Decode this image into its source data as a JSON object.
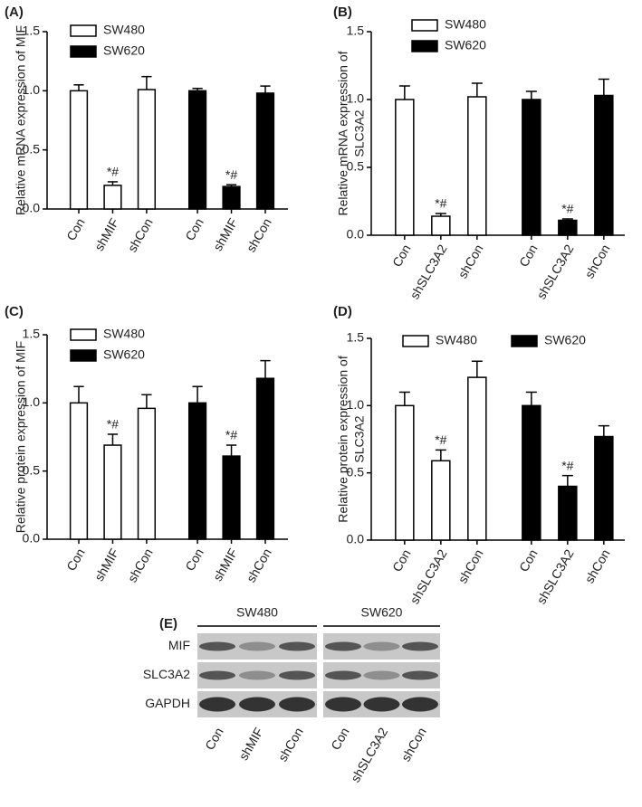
{
  "chart_data": [
    {
      "type": "bar",
      "title": "(A)",
      "ylabel": [
        "Relative mRNA expression of MIF"
      ],
      "legend_layout": "vertical",
      "categories": [
        "Con",
        "shMIF",
        "shCon",
        "Con",
        "shMIF",
        "shCon"
      ],
      "series": [
        {
          "name": "SW480",
          "color": "#ffffff",
          "values": [
            1.0,
            0.2,
            1.01,
            null,
            null,
            null
          ],
          "errors": [
            0.05,
            0.03,
            0.11,
            null,
            null,
            null
          ]
        },
        {
          "name": "SW620",
          "color": "#000000",
          "values": [
            null,
            null,
            null,
            1.0,
            0.19,
            0.98
          ],
          "errors": [
            null,
            null,
            null,
            0.02,
            0.015,
            0.06
          ]
        }
      ],
      "annotations": [
        {
          "text": "*#",
          "at": 1
        },
        {
          "text": "*#",
          "at": 4
        }
      ],
      "ylim": [
        0,
        1.5
      ],
      "yticks": [
        {
          "value": 0,
          "label": "0.0"
        },
        {
          "value": 0.5,
          "label": "0.5"
        },
        {
          "value": 1,
          "label": "1.0"
        },
        {
          "value": 1.5,
          "label": "1.5"
        }
      ]
    },
    {
      "type": "bar",
      "title": "(B)",
      "ylabel": [
        "Relative mRNA expression of",
        "SLC3A2"
      ],
      "legend_layout": "vertical",
      "categories": [
        "Con",
        "shSLC3A2",
        "shCon",
        "Con",
        "shSLC3A2",
        "shCon"
      ],
      "series": [
        {
          "name": "SW480",
          "color": "#ffffff",
          "values": [
            1.0,
            0.14,
            1.02,
            null,
            null,
            null
          ],
          "errors": [
            0.1,
            0.02,
            0.1,
            null,
            null,
            null
          ]
        },
        {
          "name": "SW620",
          "color": "#000000",
          "values": [
            null,
            null,
            null,
            1.0,
            0.11,
            1.03
          ],
          "errors": [
            null,
            null,
            null,
            0.06,
            0.01,
            0.12
          ]
        }
      ],
      "annotations": [
        {
          "text": "*#",
          "at": 1
        },
        {
          "text": "*#",
          "at": 4
        }
      ],
      "ylim": [
        0,
        1.5
      ],
      "yticks": [
        {
          "value": 0,
          "label": "0.0"
        },
        {
          "value": 0.5,
          "label": "0.5"
        },
        {
          "value": 1,
          "label": "1.0"
        },
        {
          "value": 1.5,
          "label": "1.5"
        }
      ]
    },
    {
      "type": "bar",
      "title": "(C)",
      "ylabel": [
        "Relative protein expression of MIF"
      ],
      "legend_layout": "vertical",
      "categories": [
        "Con",
        "shMIF",
        "shCon",
        "Con",
        "shMIF",
        "shCon"
      ],
      "series": [
        {
          "name": "SW480",
          "color": "#ffffff",
          "values": [
            1.0,
            0.69,
            0.96,
            null,
            null,
            null
          ],
          "errors": [
            0.12,
            0.08,
            0.1,
            null,
            null,
            null
          ]
        },
        {
          "name": "SW620",
          "color": "#000000",
          "values": [
            null,
            null,
            null,
            1.0,
            0.61,
            1.18
          ],
          "errors": [
            null,
            null,
            null,
            0.12,
            0.08,
            0.13
          ]
        }
      ],
      "annotations": [
        {
          "text": "*#",
          "at": 1
        },
        {
          "text": "*#",
          "at": 4
        }
      ],
      "ylim": [
        0,
        1.5
      ],
      "yticks": [
        {
          "value": 0,
          "label": "0.0"
        },
        {
          "value": 0.5,
          "label": "0.5"
        },
        {
          "value": 1,
          "label": "1.0"
        },
        {
          "value": 1.5,
          "label": "1.5"
        }
      ]
    },
    {
      "type": "bar",
      "title": "(D)",
      "ylabel": [
        "Relative protein expression of",
        "SLC3A2"
      ],
      "legend_layout": "horizontal",
      "categories": [
        "Con",
        "shSLC3A2",
        "shCon",
        "Con",
        "shSLC3A2",
        "shCon"
      ],
      "series": [
        {
          "name": "SW480",
          "color": "#ffffff",
          "values": [
            1.0,
            0.59,
            1.21,
            null,
            null,
            null
          ],
          "errors": [
            0.1,
            0.08,
            0.12,
            null,
            null,
            null
          ]
        },
        {
          "name": "SW620",
          "color": "#000000",
          "values": [
            null,
            null,
            null,
            1.0,
            0.4,
            0.77
          ],
          "errors": [
            null,
            null,
            null,
            0.1,
            0.08,
            0.08
          ]
        }
      ],
      "annotations": [
        {
          "text": "*#",
          "at": 1
        },
        {
          "text": "*#",
          "at": 4
        }
      ],
      "ylim": [
        0,
        1.5
      ],
      "yticks": [
        {
          "value": 0,
          "label": "0.0"
        },
        {
          "value": 0.5,
          "label": "0.5"
        },
        {
          "value": 1,
          "label": "1.0"
        },
        {
          "value": 1.5,
          "label": "1.5"
        }
      ]
    }
  ],
  "blot": {
    "title": "(E)",
    "groups": [
      "SW480",
      "SW620"
    ],
    "rows": [
      "MIF",
      "SLC3A2",
      "GAPDH"
    ],
    "lanes": [
      "Con",
      "shMIF",
      "shCon",
      "Con",
      "shSLC3A2",
      "shCon"
    ]
  }
}
